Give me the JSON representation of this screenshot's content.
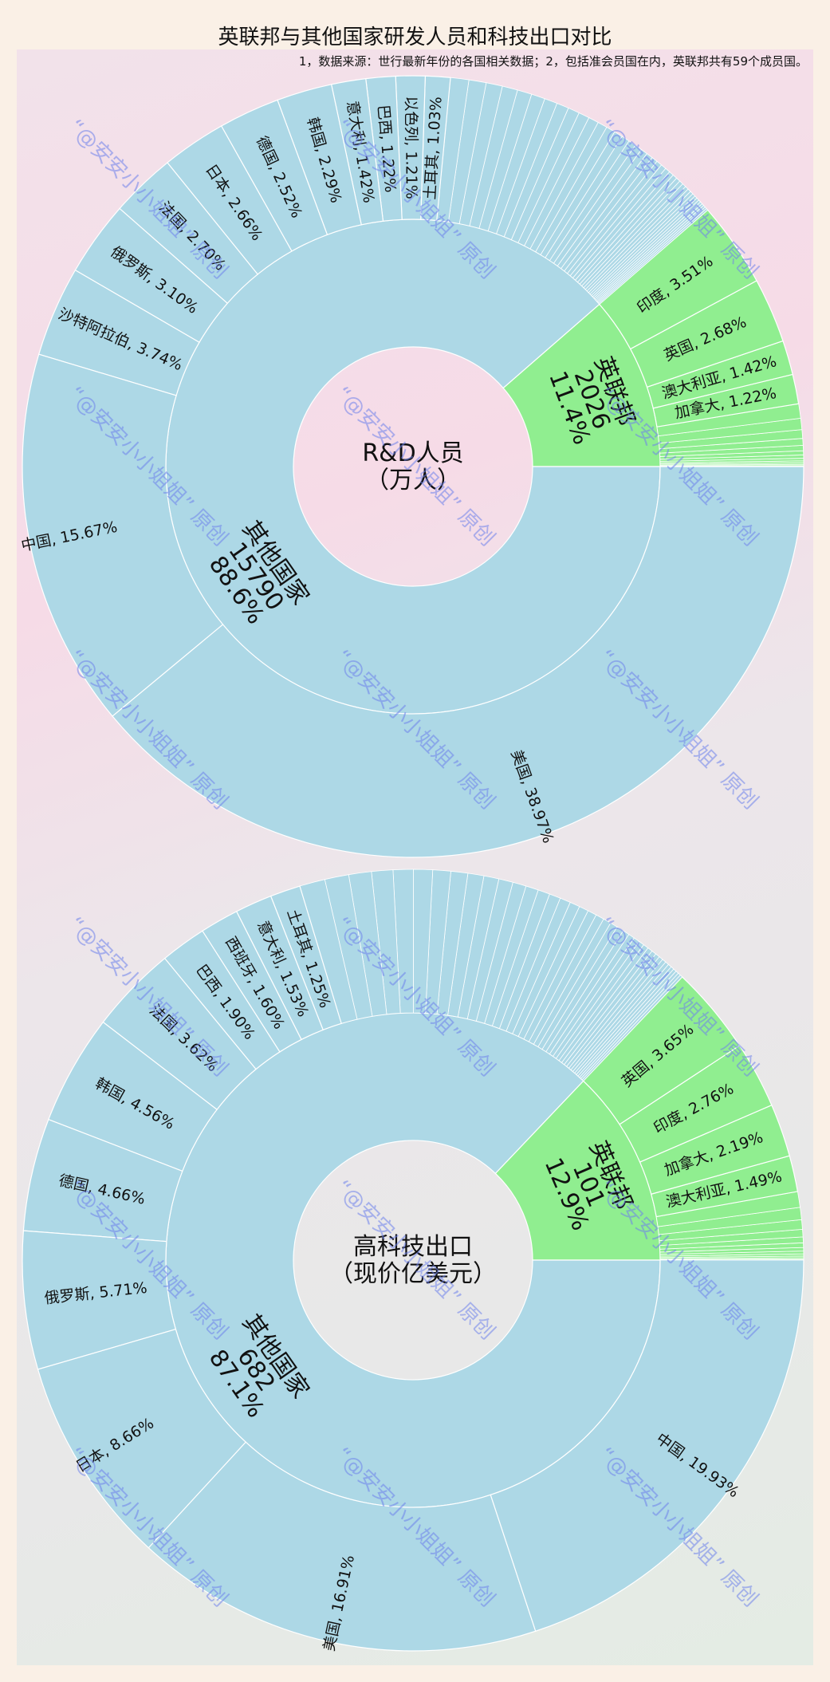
{
  "header": {
    "title": "英联邦与其他国家研发人员和科技出口对比",
    "subtitle": "1，数据来源：世行最新年份的各国相关数据；2，包括准会员国在内，英联邦共有59个成员国。"
  },
  "watermark": "“@安安小小姐姐” 原创",
  "colors": {
    "commonwealth": "#90ee90",
    "others": "#add8e6",
    "edge": "#ffffff",
    "watermark": "#6e82eb"
  },
  "chart_data": [
    {
      "type": "pie",
      "subtype": "nested-donut (sunburst)",
      "title": "R&D人员（万人）",
      "center_label_lines": [
        "R&D人员",
        "（万人）"
      ],
      "inner_ring": [
        {
          "name": "英联邦",
          "value": 2026,
          "percent": "11.4%"
        },
        {
          "name": "其他国家",
          "value": 15790,
          "percent": "88.6%"
        }
      ],
      "outer_ring": {
        "英联邦": [
          {
            "name": "印度",
            "percent": 3.51
          },
          {
            "name": "英国",
            "percent": 2.68
          },
          {
            "name": "澳大利亚",
            "percent": 1.42
          },
          {
            "name": "加拿大",
            "percent": 1.22
          },
          {
            "name": "其他成员(未标注)",
            "percent": 2.57,
            "slices": 12
          }
        ],
        "其他国家": [
          {
            "name": "美国",
            "percent": 38.97
          },
          {
            "name": "中国",
            "percent": 15.67
          },
          {
            "name": "沙特阿拉伯",
            "percent": 3.74
          },
          {
            "name": "俄罗斯",
            "percent": 3.1
          },
          {
            "name": "法国",
            "percent": 2.7
          },
          {
            "name": "日本",
            "percent": 2.66
          },
          {
            "name": "德国",
            "percent": 2.52
          },
          {
            "name": "韩国",
            "percent": 2.29
          },
          {
            "name": "意大利",
            "percent": 1.42
          },
          {
            "name": "巴西",
            "percent": 1.22
          },
          {
            "name": "以色列",
            "percent": 1.21
          },
          {
            "name": "土耳其",
            "percent": 1.03
          },
          {
            "name": "其他国家(未标注)",
            "percent": 12.07,
            "slices": 40
          }
        ]
      }
    },
    {
      "type": "pie",
      "subtype": "nested-donut (sunburst)",
      "title": "高科技出口（现价亿美元）",
      "center_label_lines": [
        "高科技出口",
        "（现价亿美元）"
      ],
      "inner_ring": [
        {
          "name": "英联邦",
          "value": 101,
          "percent": "12.9%"
        },
        {
          "name": "其他国家",
          "value": 682,
          "percent": "87.1%"
        }
      ],
      "outer_ring": {
        "英联邦": [
          {
            "name": "英国",
            "percent": 3.65
          },
          {
            "name": "印度",
            "percent": 2.76
          },
          {
            "name": "加拿大",
            "percent": 2.19
          },
          {
            "name": "澳大利亚",
            "percent": 1.49
          },
          {
            "name": "其他成员(未标注)",
            "percent": 2.81,
            "slices": 12
          }
        ],
        "其他国家": [
          {
            "name": "中国",
            "percent": 19.93
          },
          {
            "name": "美国",
            "percent": 16.91
          },
          {
            "name": "日本",
            "percent": 8.66
          },
          {
            "name": "俄罗斯",
            "percent": 5.71
          },
          {
            "name": "德国",
            "percent": 4.66
          },
          {
            "name": "韩国",
            "percent": 4.56
          },
          {
            "name": "法国",
            "percent": 3.62
          },
          {
            "name": "巴西",
            "percent": 1.9
          },
          {
            "name": "西班牙",
            "percent": 1.6
          },
          {
            "name": "意大利",
            "percent": 1.53
          },
          {
            "name": "土耳其",
            "percent": 1.25
          },
          {
            "name": "其他国家(未标注)",
            "percent": 16.78,
            "slices": 40
          }
        ]
      }
    }
  ]
}
